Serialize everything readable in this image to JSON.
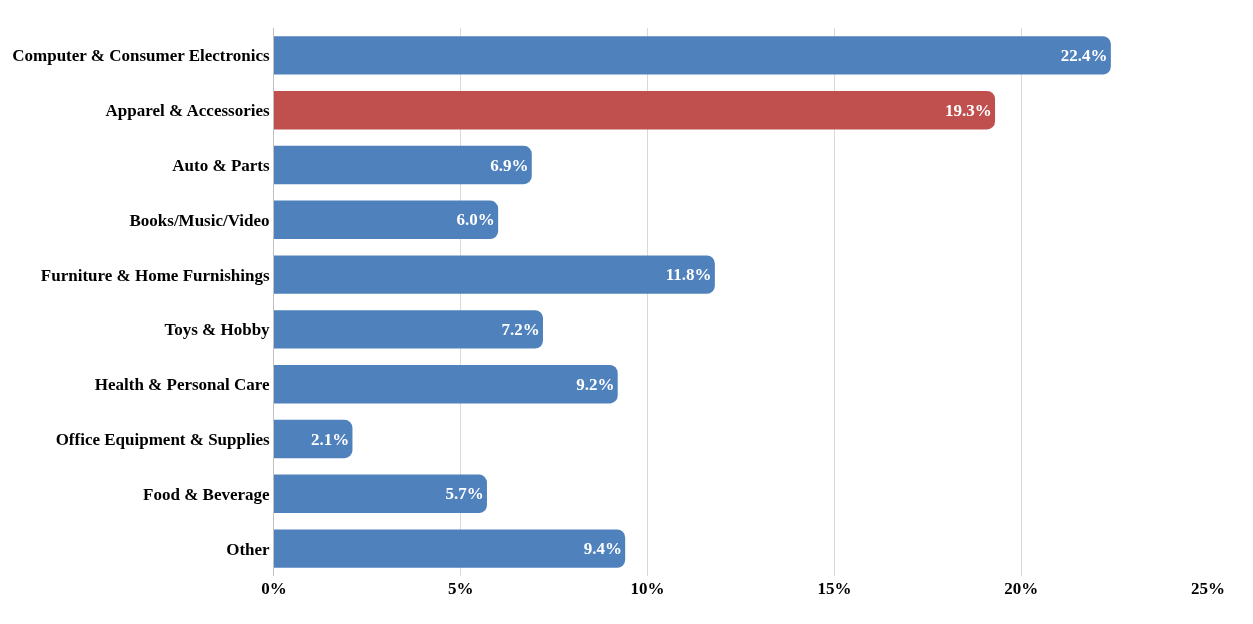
{
  "chart_data": {
    "type": "bar",
    "orientation": "horizontal",
    "categories": [
      "Computer & Consumer Electronics",
      "Apparel & Accessories",
      "Auto & Parts",
      "Books/Music/Video",
      "Furniture & Home Furnishings",
      "Toys & Hobby",
      "Health & Personal Care",
      "Office Equipment & Supplies",
      "Food & Beverage",
      "Other"
    ],
    "values": [
      22.4,
      19.3,
      6.9,
      6.0,
      11.8,
      7.2,
      9.2,
      2.1,
      5.7,
      9.4
    ],
    "colors": [
      "#4f81bd",
      "#c0504d",
      "#4f81bd",
      "#4f81bd",
      "#4f81bd",
      "#4f81bd",
      "#4f81bd",
      "#4f81bd",
      "#4f81bd",
      "#4f81bd"
    ],
    "value_labels": [
      "22.4%",
      "19.3%",
      "6.9%",
      "6.0%",
      "11.8%",
      "7.2%",
      "9.2%",
      "2.1%",
      "5.7%",
      "9.4%"
    ],
    "xlim": [
      0,
      25
    ],
    "xticks": [
      {
        "value": 0,
        "label": "0%"
      },
      {
        "value": 5,
        "label": "5%"
      },
      {
        "value": 10,
        "label": "10%"
      },
      {
        "value": 15,
        "label": "15%"
      },
      {
        "value": 20,
        "label": "20%"
      },
      {
        "value": 25,
        "label": "25%"
      }
    ],
    "grid": "x"
  }
}
